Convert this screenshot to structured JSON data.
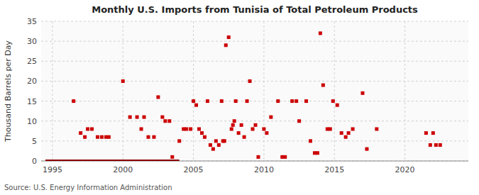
{
  "chart_data": {
    "type": "scatter",
    "title": "Monthly U.S. Imports from Tunisia of Total Petroleum Products",
    "ylabel": "Thousand Barrels per Day",
    "source": "Source: U.S. Energy Information Administration",
    "xlim": [
      1994.2,
      2024.5
    ],
    "ylim": [
      0,
      35
    ],
    "xticks": [
      1995,
      2000,
      2005,
      2010,
      2015,
      2020
    ],
    "yticks": [
      0,
      5,
      10,
      15,
      20,
      25,
      30,
      35
    ],
    "grid": true,
    "series": [
      {
        "type": "scatter",
        "color": "#cc0000",
        "marker": "square",
        "x": [
          1996.5,
          1997.0,
          1997.3,
          1997.5,
          1997.8,
          1998.2,
          1998.5,
          1998.8,
          1999.0,
          2000.0,
          2000.5,
          2001.0,
          2001.3,
          2001.5,
          2001.8,
          2002.2,
          2002.5,
          2002.8,
          2003.0,
          2003.3,
          2003.5,
          2004.0,
          2004.3,
          2004.5,
          2004.8,
          2005.0,
          2005.2,
          2005.4,
          2005.6,
          2005.8,
          2006.0,
          2006.2,
          2006.4,
          2006.6,
          2006.8,
          2007.0,
          2007.1,
          2007.2,
          2007.3,
          2007.5,
          2007.7,
          2007.8,
          2007.9,
          2008.0,
          2008.2,
          2008.4,
          2008.6,
          2008.8,
          2009.0,
          2009.2,
          2009.4,
          2009.6,
          2010.0,
          2010.2,
          2010.5,
          2011.0,
          2011.3,
          2011.5,
          2012.0,
          2012.3,
          2012.5,
          2013.0,
          2013.3,
          2013.6,
          2013.8,
          2014.0,
          2014.2,
          2014.5,
          2014.7,
          2014.9,
          2015.2,
          2015.5,
          2015.8,
          2016.0,
          2016.3,
          2017.0,
          2017.3,
          2018.0,
          2021.5,
          2021.8,
          2022.0,
          2022.2,
          2022.5
        ],
        "values": [
          15,
          7,
          6,
          8,
          8,
          6,
          6,
          6,
          6,
          20,
          11,
          11,
          8,
          11,
          6,
          6,
          16,
          11,
          10,
          10,
          1,
          5,
          8,
          8,
          8,
          15,
          14,
          8,
          7,
          6,
          15,
          4,
          3,
          5,
          4,
          15,
          5,
          5,
          29,
          31,
          8,
          9,
          10,
          15,
          7,
          9,
          6,
          15,
          20,
          8,
          9,
          1,
          8,
          7,
          11,
          15,
          1,
          1,
          15,
          15,
          10,
          15,
          5,
          2,
          2,
          32,
          19,
          8,
          8,
          15,
          14,
          7,
          6,
          7,
          8,
          17,
          3,
          8,
          7,
          4,
          7,
          4,
          4
        ]
      },
      {
        "type": "line",
        "color": "#8b0000",
        "line_style": "solid",
        "x": [
          1994.5,
          2004.0
        ],
        "values": [
          0,
          0
        ]
      }
    ]
  }
}
